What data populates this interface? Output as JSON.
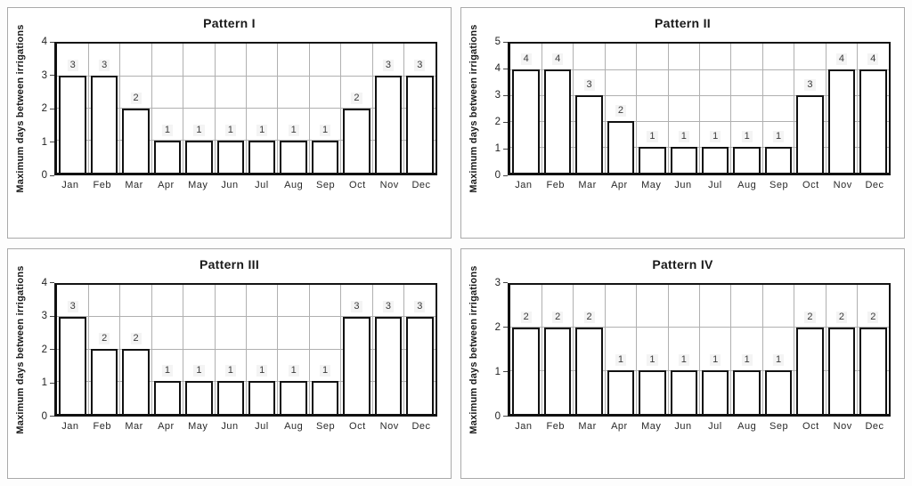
{
  "figure": {
    "description": "Four monthly irrigation-interval bar charts",
    "background": "#ffffff",
    "panel_border_color": "#a9a9a9",
    "bar_fill": "#ffffff",
    "bar_border_color": "#111111",
    "gridline_color": "#b0b0b0",
    "axis_color": "#111111",
    "text_color": "#1a1a1a"
  },
  "chart_data": [
    {
      "type": "bar",
      "title": "Pattern I",
      "ylabel": "Maximum days between irrigations",
      "xlabel": "",
      "categories": [
        "Jan",
        "Feb",
        "Mar",
        "Apr",
        "May",
        "Jun",
        "Jul",
        "Aug",
        "Sep",
        "Oct",
        "Nov",
        "Dec"
      ],
      "values": [
        3,
        3,
        2,
        1,
        1,
        1,
        1,
        1,
        1,
        2,
        3,
        3
      ],
      "ylim": [
        0,
        4
      ],
      "ytick_step": 1,
      "grid": "horizontal and vertical",
      "data_labels": true,
      "legend": "none"
    },
    {
      "type": "bar",
      "title": "Pattern II",
      "ylabel": "Maximum days between irrigations",
      "xlabel": "",
      "categories": [
        "Jan",
        "Feb",
        "Mar",
        "Apr",
        "May",
        "Jun",
        "Jul",
        "Aug",
        "Sep",
        "Oct",
        "Nov",
        "Dec"
      ],
      "values": [
        4,
        4,
        3,
        2,
        1,
        1,
        1,
        1,
        1,
        3,
        4,
        4
      ],
      "ylim": [
        0,
        5
      ],
      "ytick_step": 1,
      "grid": "horizontal and vertical",
      "data_labels": true,
      "legend": "none"
    },
    {
      "type": "bar",
      "title": "Pattern III",
      "ylabel": "Maximum days between irrigations",
      "xlabel": "",
      "categories": [
        "Jan",
        "Feb",
        "Mar",
        "Apr",
        "May",
        "Jun",
        "Jul",
        "Aug",
        "Sep",
        "Oct",
        "Nov",
        "Dec"
      ],
      "values": [
        3,
        2,
        2,
        1,
        1,
        1,
        1,
        1,
        1,
        3,
        3,
        3
      ],
      "ylim": [
        0,
        4
      ],
      "ytick_step": 1,
      "grid": "horizontal and vertical",
      "data_labels": true,
      "legend": "none"
    },
    {
      "type": "bar",
      "title": "Pattern IV",
      "ylabel": "Maximum days between irrigations",
      "xlabel": "",
      "categories": [
        "Jan",
        "Feb",
        "Mar",
        "Apr",
        "May",
        "Jun",
        "Jul",
        "Aug",
        "Sep",
        "Oct",
        "Nov",
        "Dec"
      ],
      "values": [
        2,
        2,
        2,
        1,
        1,
        1,
        1,
        1,
        1,
        2,
        2,
        2
      ],
      "ylim": [
        0,
        3
      ],
      "ytick_step": 1,
      "grid": "horizontal and vertical",
      "data_labels": true,
      "legend": "none"
    }
  ]
}
